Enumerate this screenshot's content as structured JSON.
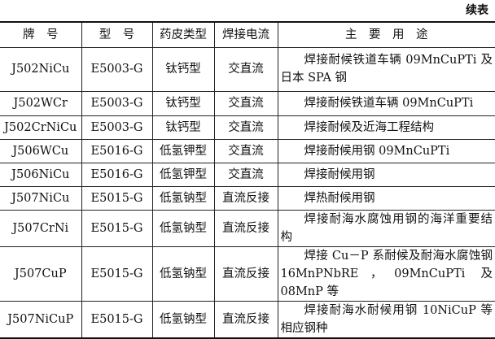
{
  "caption": "续表",
  "headers": [
    "牌　号",
    "型　号",
    "药皮类型",
    "焊接电流",
    "主　要　用　途"
  ],
  "rows": [
    {
      "brand": "J502NiCu",
      "model": "E5003-G",
      "coating": "钛钙型",
      "current": "交直流",
      "use": "焊接耐候铁道车辆 09MnCuPTi 及日本 SPA 钢"
    },
    {
      "brand": "J502WCr",
      "model": "E5003-G",
      "coating": "钛钙型",
      "current": "交直流",
      "use": "焊接耐候铁道车辆 09MnCuPTi"
    },
    {
      "brand": "J502CrNiCu",
      "model": "E5003-G",
      "coating": "钛钙型",
      "current": "交直流",
      "use": "焊接耐候及近海工程结构"
    },
    {
      "brand": "J506WCu",
      "model": "E5016-G",
      "coating": "低氢钾型",
      "current": "交直流",
      "use": "焊接耐候用钢 09MnCuPTi"
    },
    {
      "brand": "J506NiCu",
      "model": "E5016-G",
      "coating": "低氢钾型",
      "current": "交直流",
      "use": "焊接耐候用钢"
    },
    {
      "brand": "J507NiCu",
      "model": "E5015-G",
      "coating": "低氢钠型",
      "current": "直流反接",
      "use": "焊热耐候用钢"
    },
    {
      "brand": "J507CrNi",
      "model": "E5015-G",
      "coating": "低氢钠型",
      "current": "直流反接",
      "use": "焊接耐海水腐蚀用钢的海洋重要结构"
    },
    {
      "brand": "J507CuP",
      "model": "E5015-G",
      "coating": "低氢钠型",
      "current": "直流反接",
      "use": "焊接 Cu－P 系耐候及耐海水腐蚀钢 16MnPNbRE，09MnCuPTi 及 08MnP 等"
    },
    {
      "brand": "J507NiCuP",
      "model": "E5015-G",
      "coating": "低氢钠型",
      "current": "直流反接",
      "use": "焊接耐海水耐候用钢 10NiCuP 等相应钢种"
    }
  ]
}
